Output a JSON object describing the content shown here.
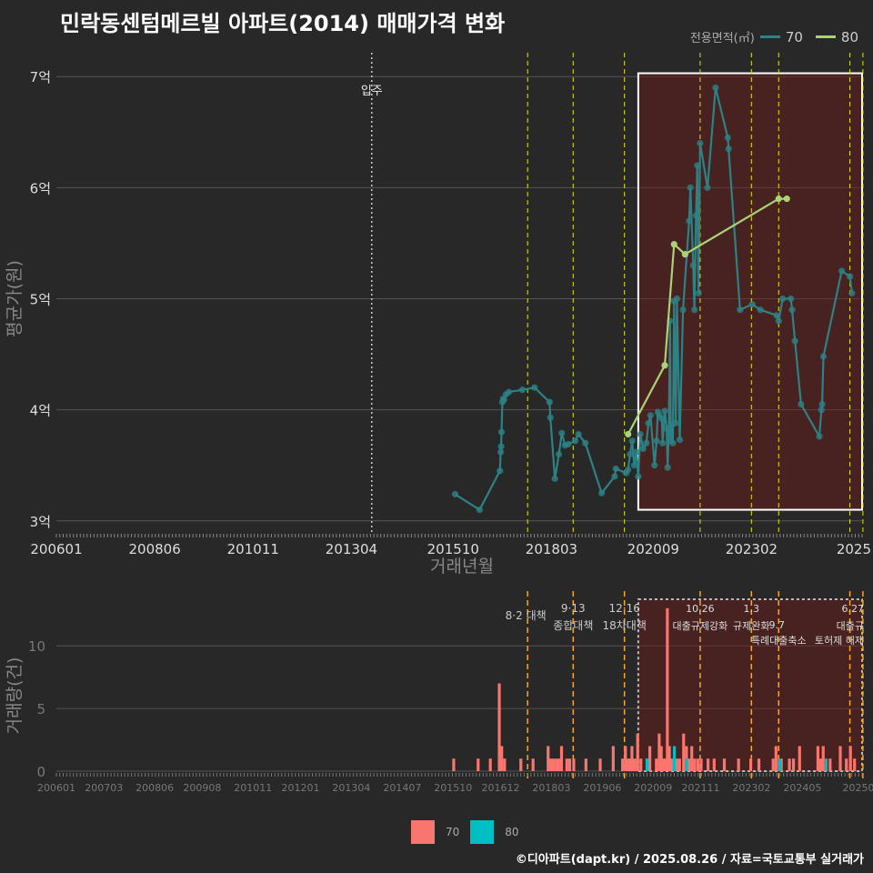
{
  "chart_data": [
    {
      "type": "line",
      "title": "민락동센텀메르빌 아파트(2014) 매매가격 변화",
      "xlabel": "거래년월",
      "ylabel": "평균가(원)",
      "x_ticks": [
        "200601",
        "200806",
        "201011",
        "201304",
        "201510",
        "201803",
        "202009",
        "202302",
        "2025"
      ],
      "y_ticks": [
        "3억",
        "4억",
        "5억",
        "6억",
        "7억"
      ],
      "y_tick_values": [
        3,
        4,
        5,
        6,
        7
      ],
      "ylim": [
        2.9,
        7.1
      ],
      "legend_title": "전용면적(㎡)",
      "move_in": {
        "t": 2013.75,
        "label": "입주"
      },
      "highlight_range": [
        2020.3,
        2025.8
      ],
      "policy_lines": [
        2017.58,
        2018.7,
        2019.96,
        2021.82,
        2023.08,
        2023.75,
        2025.5,
        2025.82
      ],
      "series": [
        {
          "name": "70",
          "color": "#2c8285",
          "points": [
            [
              2015.8,
              3.24
            ],
            [
              2016.4,
              3.1
            ],
            [
              2016.9,
              3.45
            ],
            [
              2016.92,
              3.62
            ],
            [
              2016.93,
              3.67
            ],
            [
              2016.94,
              3.8
            ],
            [
              2016.96,
              4.07
            ],
            [
              2016.98,
              4.1
            ],
            [
              2017.0,
              4.09
            ],
            [
              2017.05,
              4.14
            ],
            [
              2017.12,
              4.16
            ],
            [
              2017.45,
              4.18
            ],
            [
              2017.75,
              4.2
            ],
            [
              2018.12,
              4.07
            ],
            [
              2018.14,
              3.93
            ],
            [
              2018.25,
              3.38
            ],
            [
              2018.35,
              3.6
            ],
            [
              2018.42,
              3.79
            ],
            [
              2018.5,
              3.68
            ],
            [
              2018.58,
              3.69
            ],
            [
              2018.75,
              3.72
            ],
            [
              2018.83,
              3.78
            ],
            [
              2019.0,
              3.7
            ],
            [
              2019.4,
              3.25
            ],
            [
              2019.72,
              3.4
            ],
            [
              2019.75,
              3.47
            ],
            [
              2020.0,
              3.43
            ],
            [
              2020.05,
              3.46
            ],
            [
              2020.1,
              3.6
            ],
            [
              2020.15,
              3.72
            ],
            [
              2020.2,
              3.5
            ],
            [
              2020.25,
              3.62
            ],
            [
              2020.3,
              3.4
            ],
            [
              2020.35,
              3.78
            ],
            [
              2020.42,
              3.65
            ],
            [
              2020.5,
              3.7
            ],
            [
              2020.55,
              3.88
            ],
            [
              2020.6,
              3.95
            ],
            [
              2020.7,
              3.5
            ],
            [
              2020.75,
              3.72
            ],
            [
              2020.78,
              3.98
            ],
            [
              2020.82,
              3.95
            ],
            [
              2020.88,
              3.92
            ],
            [
              2020.9,
              3.7
            ],
            [
              2020.95,
              3.99
            ],
            [
              2021.0,
              3.83
            ],
            [
              2021.02,
              3.48
            ],
            [
              2021.05,
              3.78
            ],
            [
              2021.08,
              4.8
            ],
            [
              2021.1,
              3.72
            ],
            [
              2021.12,
              3.86
            ],
            [
              2021.15,
              3.7
            ],
            [
              2021.18,
              4.98
            ],
            [
              2021.22,
              3.88
            ],
            [
              2021.25,
              5.0
            ],
            [
              2021.32,
              3.73
            ],
            [
              2021.4,
              4.9
            ],
            [
              2021.55,
              5.7
            ],
            [
              2021.58,
              6.0
            ],
            [
              2021.65,
              5.3
            ],
            [
              2021.68,
              4.9
            ],
            [
              2021.72,
              5.75
            ],
            [
              2021.75,
              6.2
            ],
            [
              2021.78,
              5.05
            ],
            [
              2021.82,
              6.4
            ],
            [
              2022.0,
              6.0
            ],
            [
              2022.2,
              6.9
            ],
            [
              2022.5,
              6.45
            ],
            [
              2022.52,
              6.35
            ],
            [
              2022.8,
              4.9
            ],
            [
              2023.1,
              4.95
            ],
            [
              2023.3,
              4.9
            ],
            [
              2023.7,
              4.85
            ],
            [
              2023.75,
              4.8
            ],
            [
              2023.85,
              5.0
            ],
            [
              2024.05,
              5.0
            ],
            [
              2024.08,
              4.9
            ],
            [
              2024.15,
              4.62
            ],
            [
              2024.3,
              4.05
            ],
            [
              2024.75,
              3.76
            ],
            [
              2024.8,
              4.0
            ],
            [
              2024.82,
              4.05
            ],
            [
              2024.85,
              4.48
            ],
            [
              2025.3,
              5.25
            ],
            [
              2025.5,
              5.2
            ],
            [
              2025.55,
              5.05
            ]
          ]
        },
        {
          "name": "80",
          "color": "#aad376",
          "points": [
            [
              2020.05,
              3.78
            ],
            [
              2020.95,
              4.4
            ],
            [
              2021.18,
              5.49
            ],
            [
              2021.45,
              5.4
            ],
            [
              2023.75,
              5.9
            ],
            [
              2023.95,
              5.9
            ]
          ]
        }
      ]
    },
    {
      "type": "bar",
      "ylabel": "거래량(건)",
      "y_ticks": [
        "0",
        "5",
        "10"
      ],
      "y_tick_values": [
        0,
        5,
        10
      ],
      "ylim": [
        0,
        13.5
      ],
      "x_ticks": [
        "200601",
        "200703",
        "200806",
        "200908",
        "201011",
        "201201",
        "201304",
        "201407",
        "201510",
        "201612",
        "201803",
        "201906",
        "202009",
        "202111",
        "202302",
        "202405",
        "20250"
      ],
      "highlight_range": [
        2020.3,
        2025.8
      ],
      "legend": [
        {
          "name": "70",
          "color": "#f8766d"
        },
        {
          "name": "80",
          "color": "#00bfc4"
        }
      ],
      "policies": [
        {
          "t": 2017.58,
          "label": "8·2 대책",
          "color": "#f5a623"
        },
        {
          "t": 2018.7,
          "label": "9·13",
          "label2": "종합대책",
          "color": "#f5a623"
        },
        {
          "t": 2019.96,
          "label": "12·16",
          "label2": "18차대책",
          "color": "#f5a623"
        },
        {
          "t": 2021.82,
          "label": "10.26",
          "label2": "대출규제강화",
          "color": "#f5a623"
        },
        {
          "t": 2023.08,
          "label": "1.3",
          "label2": "규제완화",
          "color": "#f5a623"
        },
        {
          "t": 2023.75,
          "label": "9.7",
          "label2": "특례대출축소",
          "color": "#f5a623"
        },
        {
          "t": 2025.5,
          "label": "토허제 해제",
          "color": "#f5a623"
        },
        {
          "t": 2025.82,
          "label": "6.27",
          "label2": "대출규",
          "color": "#f5a623"
        }
      ],
      "series": [
        {
          "name": "70",
          "color": "#f8766d",
          "bars": [
            [
              2015.8,
              1
            ],
            [
              2016.4,
              1
            ],
            [
              2016.7,
              1
            ],
            [
              2016.92,
              7
            ],
            [
              2016.98,
              2
            ],
            [
              2017.05,
              1
            ],
            [
              2017.45,
              1
            ],
            [
              2017.75,
              1
            ],
            [
              2018.12,
              2
            ],
            [
              2018.18,
              1
            ],
            [
              2018.25,
              1
            ],
            [
              2018.32,
              1
            ],
            [
              2018.38,
              1
            ],
            [
              2018.45,
              2
            ],
            [
              2018.58,
              1
            ],
            [
              2018.65,
              1
            ],
            [
              2018.75,
              1
            ],
            [
              2019.05,
              1
            ],
            [
              2019.4,
              1
            ],
            [
              2019.72,
              2
            ],
            [
              2019.95,
              1
            ],
            [
              2020.02,
              2
            ],
            [
              2020.08,
              1
            ],
            [
              2020.12,
              1
            ],
            [
              2020.18,
              2
            ],
            [
              2020.25,
              1
            ],
            [
              2020.32,
              3
            ],
            [
              2020.4,
              1
            ],
            [
              2020.55,
              1
            ],
            [
              2020.62,
              2
            ],
            [
              2020.78,
              1
            ],
            [
              2020.85,
              3
            ],
            [
              2020.9,
              2
            ],
            [
              2020.95,
              1
            ],
            [
              2021.0,
              1
            ],
            [
              2021.05,
              13
            ],
            [
              2021.1,
              2
            ],
            [
              2021.15,
              1
            ],
            [
              2021.22,
              1
            ],
            [
              2021.28,
              1
            ],
            [
              2021.35,
              1
            ],
            [
              2021.45,
              3
            ],
            [
              2021.52,
              2
            ],
            [
              2021.58,
              1
            ],
            [
              2021.65,
              2
            ],
            [
              2021.72,
              1
            ],
            [
              2021.8,
              1
            ],
            [
              2021.88,
              1
            ],
            [
              2022.05,
              1
            ],
            [
              2022.2,
              1
            ],
            [
              2022.45,
              1
            ],
            [
              2022.8,
              1
            ],
            [
              2023.1,
              1
            ],
            [
              2023.3,
              1
            ],
            [
              2023.65,
              1
            ],
            [
              2023.72,
              2
            ],
            [
              2023.8,
              1
            ],
            [
              2023.85,
              1
            ],
            [
              2024.05,
              1
            ],
            [
              2024.15,
              1
            ],
            [
              2024.3,
              2
            ],
            [
              2024.75,
              2
            ],
            [
              2024.82,
              1
            ],
            [
              2024.88,
              2
            ],
            [
              2025.05,
              1
            ],
            [
              2025.3,
              2
            ],
            [
              2025.45,
              1
            ],
            [
              2025.55,
              2
            ],
            [
              2025.65,
              1
            ]
          ]
        },
        {
          "name": "80",
          "color": "#00bfc4",
          "bars": [
            [
              2020.48,
              1
            ],
            [
              2021.15,
              2
            ],
            [
              2021.45,
              1
            ],
            [
              2023.75,
              1
            ],
            [
              2024.88,
              1
            ]
          ]
        }
      ]
    }
  ],
  "footer": "©디아파트(dapt.kr) / 2025.08.26 / 자료=국토교통부 실거래가"
}
